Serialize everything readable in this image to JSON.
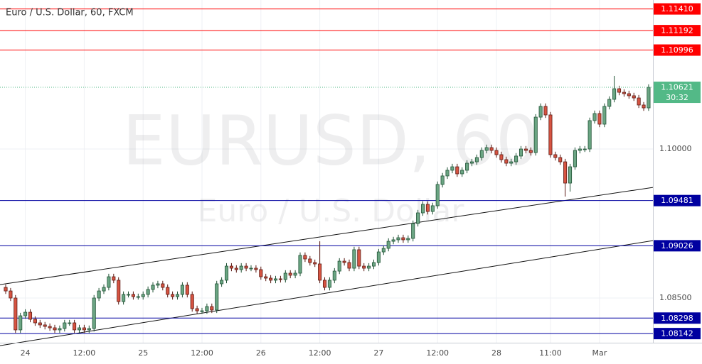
{
  "chart_data": {
    "type": "candlestick",
    "title": "Euro / U.S. Dollar, 60, FXCM",
    "watermark": "EURUSD, 60",
    "watermark_subtitle": "Euro / U.S. Dollar",
    "xlim": [
      -1.16,
      131.88
    ],
    "ylim": [
      1.0805,
      1.115
    ],
    "yticks": [
      {
        "value": 1.085,
        "label": "1.08500"
      },
      {
        "value": 1.1,
        "label": "1.10000"
      }
    ],
    "xticks": [
      {
        "value": 4,
        "label": "24"
      },
      {
        "value": 16,
        "label": "12:00"
      },
      {
        "value": 28,
        "label": "25"
      },
      {
        "value": 40,
        "label": "12:00"
      },
      {
        "value": 52,
        "label": "26"
      },
      {
        "value": 64,
        "label": "12:00"
      },
      {
        "value": 76,
        "label": "27"
      },
      {
        "value": 88,
        "label": "12:00"
      },
      {
        "value": 100,
        "label": "28"
      },
      {
        "value": 111,
        "label": "11:00"
      },
      {
        "value": 121,
        "label": "Mar"
      }
    ],
    "grid": true,
    "up_color": "#6ba583",
    "down_color": "#d75442",
    "levels": [
      {
        "value": 1.1141,
        "label": "1.11410",
        "color": "#ff0000"
      },
      {
        "value": 1.11192,
        "label": "1.11192",
        "color": "#ff0000"
      },
      {
        "value": 1.10996,
        "label": "1.10996",
        "color": "#ff0000"
      },
      {
        "value": 1.09481,
        "label": "1.09481",
        "color": "#0000a0"
      },
      {
        "value": 1.09026,
        "label": "1.09026",
        "color": "#0000a0"
      },
      {
        "value": 1.08298,
        "label": "1.08298",
        "color": "#0000a0"
      },
      {
        "value": 1.08142,
        "label": "1.08142",
        "color": "#0000a0"
      }
    ],
    "last": {
      "value": 1.10621,
      "label": "1.10621",
      "countdown": "30:32",
      "color": "#53b987"
    },
    "trendlines": [
      {
        "x": [
          0,
          131
        ],
        "y": [
          1.08643,
          1.09607
        ]
      },
      {
        "x": [
          16,
          131
        ],
        "y": [
          1.08157,
          1.09071
        ]
      }
    ],
    "ohlc": [
      [
        1.08607,
        1.08637,
        1.08541,
        1.08571
      ],
      [
        1.08571,
        1.08601,
        1.0847,
        1.085
      ],
      [
        1.085,
        1.0853,
        1.08149,
        1.08179
      ],
      [
        1.08179,
        1.08351,
        1.08149,
        1.08321
      ],
      [
        1.08321,
        1.08387,
        1.08291,
        1.08357
      ],
      [
        1.08357,
        1.08387,
        1.08256,
        1.08286
      ],
      [
        1.08286,
        1.08316,
        1.0822,
        1.0825
      ],
      [
        1.0825,
        1.0828,
        1.08199,
        1.08229
      ],
      [
        1.08229,
        1.08259,
        1.08184,
        1.08214
      ],
      [
        1.08214,
        1.08244,
        1.0817,
        1.082
      ],
      [
        1.082,
        1.0823,
        1.08149,
        1.08179
      ],
      [
        1.08179,
        1.08223,
        1.08149,
        1.08193
      ],
      [
        1.08193,
        1.0828,
        1.08163,
        1.0825
      ],
      [
        1.0825,
        1.0828,
        1.0822,
        1.0825
      ],
      [
        1.0825,
        1.0828,
        1.08149,
        1.08179
      ],
      [
        1.08179,
        1.0823,
        1.08149,
        1.082
      ],
      [
        1.082,
        1.0823,
        1.08149,
        1.08179
      ],
      [
        1.08179,
        1.08223,
        1.08149,
        1.08193
      ],
      [
        1.08193,
        1.0853,
        1.08163,
        1.085
      ],
      [
        1.085,
        1.08601,
        1.0847,
        1.08571
      ],
      [
        1.08571,
        1.08637,
        1.08541,
        1.08607
      ],
      [
        1.08607,
        1.08744,
        1.08577,
        1.08714
      ],
      [
        1.08714,
        1.08744,
        1.08649,
        1.08679
      ],
      [
        1.08679,
        1.08709,
        1.08434,
        1.08464
      ],
      [
        1.08464,
        1.08566,
        1.08434,
        1.08536
      ],
      [
        1.08536,
        1.08566,
        1.08506,
        1.08536
      ],
      [
        1.08536,
        1.08566,
        1.08484,
        1.08514
      ],
      [
        1.08514,
        1.08544,
        1.08484,
        1.08514
      ],
      [
        1.08514,
        1.08566,
        1.08484,
        1.08536
      ],
      [
        1.08536,
        1.08616,
        1.08506,
        1.08586
      ],
      [
        1.08586,
        1.08659,
        1.08556,
        1.08629
      ],
      [
        1.08629,
        1.08673,
        1.08599,
        1.08643
      ],
      [
        1.08643,
        1.08673,
        1.08577,
        1.08607
      ],
      [
        1.08607,
        1.08637,
        1.08506,
        1.08536
      ],
      [
        1.08536,
        1.08566,
        1.08484,
        1.08514
      ],
      [
        1.08514,
        1.08566,
        1.08484,
        1.08536
      ],
      [
        1.08536,
        1.08659,
        1.08506,
        1.08629
      ],
      [
        1.08629,
        1.08659,
        1.08506,
        1.08536
      ],
      [
        1.08536,
        1.08566,
        1.08363,
        1.08393
      ],
      [
        1.08393,
        1.08423,
        1.08341,
        1.08371
      ],
      [
        1.08371,
        1.08401,
        1.08341,
        1.08371
      ],
      [
        1.08371,
        1.08444,
        1.08341,
        1.08414
      ],
      [
        1.08414,
        1.08444,
        1.08349,
        1.08379
      ],
      [
        1.08379,
        1.08673,
        1.08349,
        1.08643
      ],
      [
        1.08643,
        1.08709,
        1.08613,
        1.08679
      ],
      [
        1.08679,
        1.08851,
        1.08649,
        1.08821
      ],
      [
        1.08821,
        1.08851,
        1.0877,
        1.088
      ],
      [
        1.088,
        1.0883,
        1.08756,
        1.08786
      ],
      [
        1.08786,
        1.08851,
        1.08756,
        1.08821
      ],
      [
        1.08821,
        1.08851,
        1.0877,
        1.088
      ],
      [
        1.088,
        1.0883,
        1.0877,
        1.088
      ],
      [
        1.088,
        1.0883,
        1.08756,
        1.08786
      ],
      [
        1.08786,
        1.08816,
        1.08684,
        1.08714
      ],
      [
        1.08714,
        1.08744,
        1.0867,
        1.087
      ],
      [
        1.087,
        1.0873,
        1.08649,
        1.08679
      ],
      [
        1.08679,
        1.08723,
        1.08649,
        1.08693
      ],
      [
        1.08693,
        1.08723,
        1.08656,
        1.08686
      ],
      [
        1.08686,
        1.0878,
        1.08656,
        1.0875
      ],
      [
        1.0875,
        1.0878,
        1.08699,
        1.08729
      ],
      [
        1.08729,
        1.0878,
        1.08699,
        1.0875
      ],
      [
        1.0875,
        1.08959,
        1.0872,
        1.08929
      ],
      [
        1.08929,
        1.08959,
        1.08863,
        1.08893
      ],
      [
        1.08893,
        1.08923,
        1.08827,
        1.08857
      ],
      [
        1.08857,
        1.08887,
        1.08813,
        1.08843
      ],
      [
        1.08843,
        1.09071,
        1.08649,
        1.08679
      ],
      [
        1.08679,
        1.08709,
        1.08577,
        1.08607
      ],
      [
        1.08607,
        1.08709,
        1.08577,
        1.08679
      ],
      [
        1.08679,
        1.08801,
        1.08649,
        1.08771
      ],
      [
        1.08771,
        1.08901,
        1.08741,
        1.08871
      ],
      [
        1.08871,
        1.08901,
        1.08827,
        1.08857
      ],
      [
        1.08857,
        1.08887,
        1.0877,
        1.088
      ],
      [
        1.088,
        1.09016,
        1.0877,
        1.08986
      ],
      [
        1.08986,
        1.09016,
        1.08791,
        1.08821
      ],
      [
        1.08821,
        1.08851,
        1.0877,
        1.088
      ],
      [
        1.088,
        1.08851,
        1.0877,
        1.08821
      ],
      [
        1.08821,
        1.08887,
        1.08791,
        1.08857
      ],
      [
        1.08857,
        1.08994,
        1.08827,
        1.08964
      ],
      [
        1.08964,
        1.0903,
        1.08934,
        1.09
      ],
      [
        1.09,
        1.09101,
        1.0897,
        1.09071
      ],
      [
        1.09071,
        1.09116,
        1.09041,
        1.09086
      ],
      [
        1.09086,
        1.09137,
        1.09056,
        1.09107
      ],
      [
        1.09107,
        1.09137,
        1.09056,
        1.09086
      ],
      [
        1.09086,
        1.0913,
        1.09056,
        1.091
      ],
      [
        1.091,
        1.0928,
        1.0907,
        1.0925
      ],
      [
        1.0925,
        1.09387,
        1.0922,
        1.09357
      ],
      [
        1.09357,
        1.09473,
        1.09327,
        1.09443
      ],
      [
        1.09443,
        1.09473,
        1.09341,
        1.09371
      ],
      [
        1.09371,
        1.09459,
        1.09341,
        1.09429
      ],
      [
        1.09429,
        1.09673,
        1.09399,
        1.09643
      ],
      [
        1.09643,
        1.09759,
        1.09613,
        1.09729
      ],
      [
        1.09729,
        1.09816,
        1.09699,
        1.09786
      ],
      [
        1.09786,
        1.09851,
        1.09756,
        1.09821
      ],
      [
        1.09821,
        1.09851,
        1.0972,
        1.0975
      ],
      [
        1.0975,
        1.09816,
        1.0972,
        1.09786
      ],
      [
        1.09786,
        1.09887,
        1.09756,
        1.09857
      ],
      [
        1.09857,
        1.09901,
        1.09827,
        1.09871
      ],
      [
        1.09871,
        1.09944,
        1.09841,
        1.09914
      ],
      [
        1.09914,
        1.10016,
        1.09884,
        1.09986
      ],
      [
        1.09986,
        1.10044,
        1.09956,
        1.10014
      ],
      [
        1.10014,
        1.10044,
        1.09956,
        1.09986
      ],
      [
        1.09986,
        1.10016,
        1.09913,
        1.09943
      ],
      [
        1.09943,
        1.09973,
        1.09863,
        1.09893
      ],
      [
        1.09893,
        1.09923,
        1.09827,
        1.09857
      ],
      [
        1.09857,
        1.09901,
        1.09827,
        1.09871
      ],
      [
        1.09871,
        1.09959,
        1.09841,
        1.09929
      ],
      [
        1.09929,
        1.1003,
        1.09899,
        1.1
      ],
      [
        1.1,
        1.1003,
        1.09956,
        1.09986
      ],
      [
        1.09986,
        1.10016,
        1.09934,
        1.09964
      ],
      [
        1.09964,
        1.10351,
        1.09934,
        1.10321
      ],
      [
        1.10321,
        1.10459,
        1.10291,
        1.10429
      ],
      [
        1.10429,
        1.10459,
        1.10313,
        1.10343
      ],
      [
        1.10343,
        1.10373,
        1.09913,
        1.09943
      ],
      [
        1.09943,
        1.09973,
        1.09884,
        1.09914
      ],
      [
        1.09914,
        1.09944,
        1.09841,
        1.09871
      ],
      [
        1.09871,
        1.09901,
        1.09521,
        1.09657
      ],
      [
        1.09657,
        1.09851,
        1.09571,
        1.09821
      ],
      [
        1.09821,
        1.10016,
        1.09791,
        1.09986
      ],
      [
        1.09986,
        1.1003,
        1.09956,
        1.1
      ],
      [
        1.1,
        1.1003,
        1.0997,
        1.1
      ],
      [
        1.1,
        1.10316,
        1.0997,
        1.10286
      ],
      [
        1.10286,
        1.10387,
        1.10256,
        1.10357
      ],
      [
        1.10357,
        1.10387,
        1.1022,
        1.1025
      ],
      [
        1.1025,
        1.10459,
        1.1022,
        1.10429
      ],
      [
        1.10429,
        1.1053,
        1.10399,
        1.105
      ],
      [
        1.105,
        1.10736,
        1.1047,
        1.10607
      ],
      [
        1.10607,
        1.10637,
        1.10541,
        1.10571
      ],
      [
        1.10571,
        1.10601,
        1.10527,
        1.10557
      ],
      [
        1.10557,
        1.10587,
        1.10506,
        1.10536
      ],
      [
        1.10536,
        1.10566,
        1.10484,
        1.10514
      ],
      [
        1.10514,
        1.10544,
        1.10413,
        1.10443
      ],
      [
        1.10443,
        1.10473,
        1.10384,
        1.10414
      ],
      [
        1.10414,
        1.10651,
        1.10384,
        1.10621
      ]
    ]
  }
}
